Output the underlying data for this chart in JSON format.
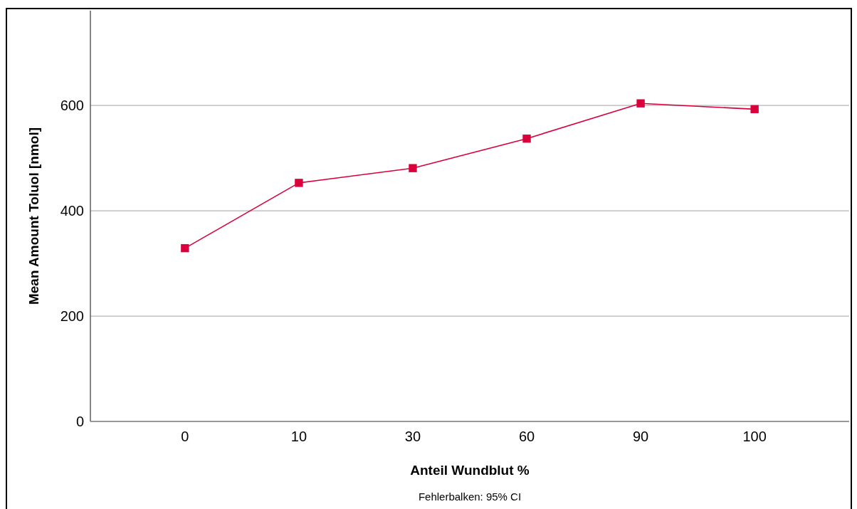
{
  "chart_data": {
    "type": "line",
    "xlabel": "Anteil Wundblut %",
    "ylabel": "Mean Amount Toluol [nmol]",
    "annotations": [
      "Fehlerbalken: 95% CI"
    ],
    "categories": [
      "0",
      "10",
      "30",
      "60",
      "90",
      "100"
    ],
    "series": [
      {
        "color": "#d9003b",
        "values": [
          329,
          453,
          481,
          537,
          604,
          593
        ]
      }
    ],
    "ylim": [
      0,
      780
    ],
    "yticks": [
      0,
      200,
      400,
      600
    ],
    "grid": "y",
    "marker": "square",
    "line_style": "solid"
  }
}
